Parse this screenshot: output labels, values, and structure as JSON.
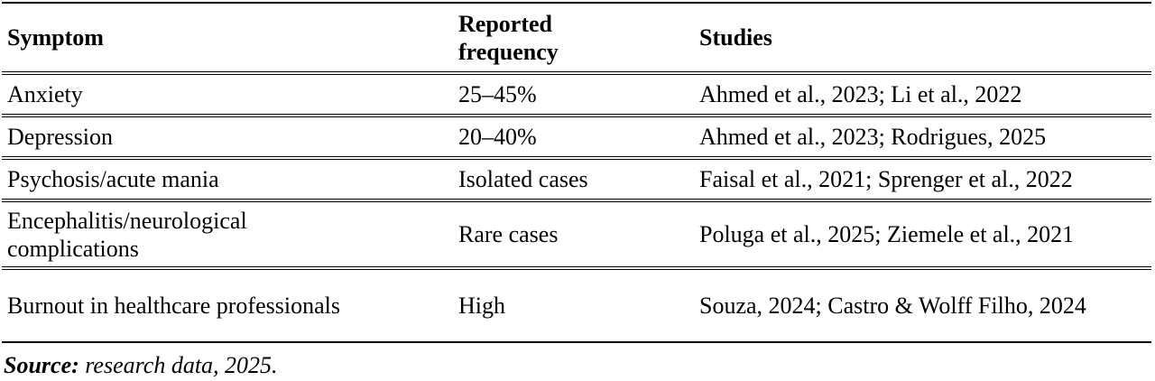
{
  "table": {
    "header": [
      "Symptom",
      "Reported frequency",
      "Studies"
    ],
    "rows": [
      [
        "Anxiety",
        "25–45%",
        "Ahmed et al., 2023; Li et al., 2022"
      ],
      [
        "Depression",
        "20–40%",
        "Ahmed et al., 2023; Rodrigues, 2025"
      ],
      [
        "Psychosis/acute mania",
        "Isolated cases",
        "Faisal et al., 2021; Sprenger et al., 2022"
      ],
      [
        "Encephalitis/neurological complications",
        "Rare cases",
        "Poluga et al., 2025; Ziemele et al., 2021"
      ],
      [
        "Burnout in healthcare professionals",
        "High",
        "Souza, 2024; Castro & Wolff Filho, 2024"
      ]
    ]
  },
  "source": {
    "label": "Source:",
    "text": "research data, 2025."
  }
}
